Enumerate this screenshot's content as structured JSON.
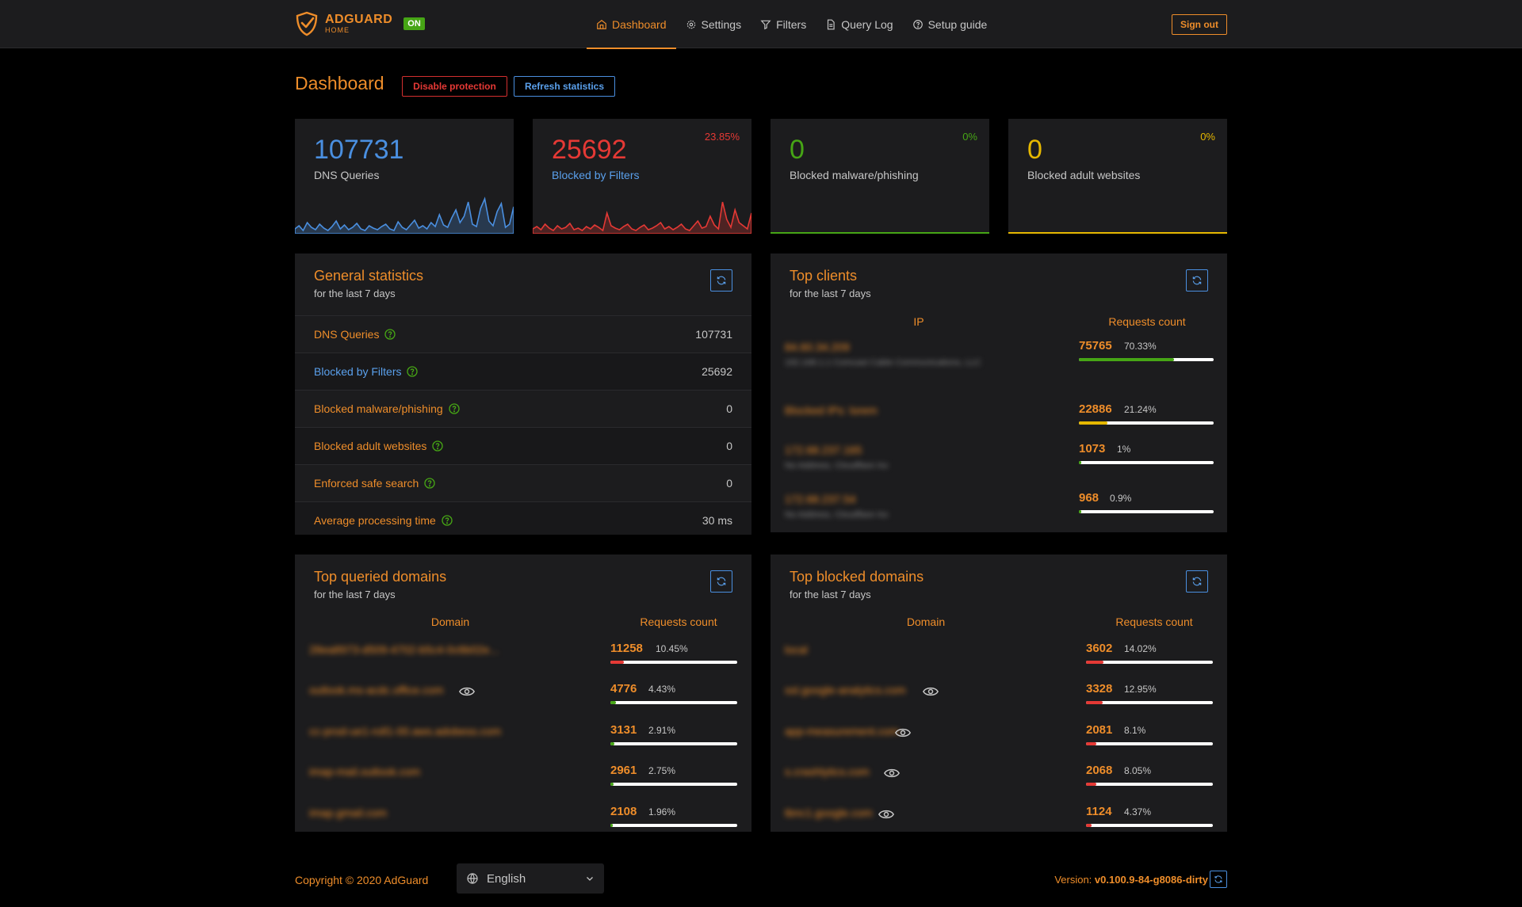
{
  "header": {
    "logo_main": "ADGUARD",
    "logo_sub": "HOME",
    "status_badge": "ON",
    "nav": [
      {
        "label": "Dashboard",
        "icon": "home-icon",
        "active": true
      },
      {
        "label": "Settings",
        "icon": "gear-icon",
        "active": false
      },
      {
        "label": "Filters",
        "icon": "filter-icon",
        "active": false
      },
      {
        "label": "Query Log",
        "icon": "document-icon",
        "active": false
      },
      {
        "label": "Setup guide",
        "icon": "help-circle-icon",
        "active": false
      }
    ],
    "signout_label": "Sign out"
  },
  "dashboard": {
    "title": "Dashboard",
    "disable_label": "Disable protection",
    "refresh_label": "Refresh statistics"
  },
  "stats": [
    {
      "value": "107731",
      "label": "DNS Queries",
      "pct": "",
      "color": "#4a8fe0",
      "label_color": "#c6c6c6"
    },
    {
      "value": "25692",
      "label": "Blocked by Filters",
      "pct": "23.85%",
      "color": "#e53935",
      "label_color": "#5aa0ec"
    },
    {
      "value": "0",
      "label": "Blocked malware/phishing",
      "pct": "0%",
      "color": "#46a515",
      "label_color": "#c6c6c6"
    },
    {
      "value": "0",
      "label": "Blocked adult websites",
      "pct": "0%",
      "color": "#e6b800",
      "label_color": "#c6c6c6"
    }
  ],
  "general": {
    "title": "General statistics",
    "subtitle": "for the last 7 days",
    "rows": [
      {
        "label": "DNS Queries",
        "value": "107731"
      },
      {
        "label": "Blocked by Filters",
        "value": "25692"
      },
      {
        "label": "Blocked malware/phishing",
        "value": "0"
      },
      {
        "label": "Blocked adult websites",
        "value": "0"
      },
      {
        "label": "Enforced safe search",
        "value": "0"
      },
      {
        "label": "Average processing time",
        "value": "30 ms"
      }
    ]
  },
  "clients": {
    "title": "Top clients",
    "subtitle": "for the last 7 days",
    "col_ip": "IP",
    "col_count": "Requests count",
    "rows": [
      {
        "ip": "84.60.34.209",
        "sub": "192.168.1.1 Comcast Cable Communications, LLC",
        "count": "75765",
        "pct": "70.33%",
        "fill": 0.7033,
        "color": "#46a515"
      },
      {
        "ip": "Blocked IPs: lorem",
        "sub": "",
        "count": "22886",
        "pct": "21.24%",
        "fill": 0.2124,
        "color": "#e6b800"
      },
      {
        "ip": "172.68.237.165",
        "sub": "No Address, Cloudflare Inc",
        "count": "1073",
        "pct": "1%",
        "fill": 0.01,
        "color": "#46a515"
      },
      {
        "ip": "172.68.237.54",
        "sub": "No Address, Cloudflare Inc",
        "count": "968",
        "pct": "0.9%",
        "fill": 0.009,
        "color": "#46a515"
      }
    ]
  },
  "queried": {
    "title": "Top queried domains",
    "subtitle": "for the last 7 days",
    "col_domain": "Domain",
    "col_count": "Requests count",
    "rows": [
      {
        "domain": "28ea8973-d509-4702-b5c4-0c6b02e...",
        "eye": false,
        "count": "11258",
        "pct": "10.45%",
        "fill": 0.1045,
        "color": "#e53935"
      },
      {
        "domain": "outlook.ms-acdc.office.com",
        "eye": true,
        "count": "4776",
        "pct": "4.43%",
        "fill": 0.0443,
        "color": "#46a515"
      },
      {
        "domain": "cc-prod-ue1-roll1-00.aws.adobess.com",
        "eye": false,
        "count": "3131",
        "pct": "2.91%",
        "fill": 0.0291,
        "color": "#46a515"
      },
      {
        "domain": "imap-mail.outlook.com",
        "eye": false,
        "count": "2961",
        "pct": "2.75%",
        "fill": 0.0275,
        "color": "#46a515"
      },
      {
        "domain": "imap.gmail.com",
        "eye": false,
        "count": "2108",
        "pct": "1.96%",
        "fill": 0.0196,
        "color": "#46a515"
      }
    ]
  },
  "blocked": {
    "title": "Top blocked domains",
    "subtitle": "for the last 7 days",
    "col_domain": "Domain",
    "col_count": "Requests count",
    "rows": [
      {
        "domain": "local",
        "eye": false,
        "count": "3602",
        "pct": "14.02%",
        "fill": 0.1402,
        "color": "#e53935"
      },
      {
        "domain": "ssl.google-analytics.com",
        "eye": true,
        "count": "3328",
        "pct": "12.95%",
        "fill": 0.1295,
        "color": "#e53935"
      },
      {
        "domain": "app-measurement.com",
        "eye": true,
        "count": "2081",
        "pct": "8.1%",
        "fill": 0.081,
        "color": "#e53935"
      },
      {
        "domain": "s.crashlytics.com",
        "eye": true,
        "count": "2068",
        "pct": "8.05%",
        "fill": 0.0805,
        "color": "#e53935"
      },
      {
        "domain": "tbnc1.google.com",
        "eye": true,
        "count": "1124",
        "pct": "4.37%",
        "fill": 0.0437,
        "color": "#e53935"
      }
    ]
  },
  "footer": {
    "copyright_prefix": "Copyright © 2020 ",
    "copyright_link": "AdGuard",
    "language": "English",
    "version_label": "Version: ",
    "version_value": "v0.100.9-84-g8086-dirty"
  }
}
